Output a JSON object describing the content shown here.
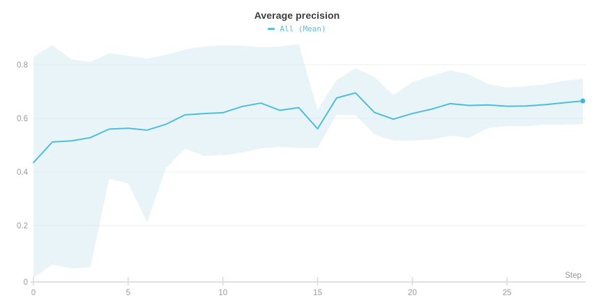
{
  "header": {
    "title": "Average precision"
  },
  "legend": {
    "items": [
      {
        "label": "All (Mean)",
        "color": "#57c0dd"
      }
    ]
  },
  "colors": {
    "line": "#4dbdda",
    "end_dot": "#3fb6d8",
    "band_fill": "#d8edf4",
    "grid_line": "#ededed",
    "axis_line": "#e0e0e0",
    "tick_mark": "#d9d9d9",
    "tick_label": "#9b9b9b",
    "title_text": "#3d3d3d"
  },
  "chart_data": {
    "type": "line",
    "title": "Average precision",
    "xlabel": "Step",
    "ylabel": "",
    "x": [
      0,
      1,
      2,
      3,
      4,
      5,
      6,
      7,
      8,
      9,
      10,
      11,
      12,
      13,
      14,
      15,
      16,
      17,
      18,
      19,
      20,
      21,
      22,
      23,
      24,
      25,
      26,
      27,
      28,
      29
    ],
    "series": [
      {
        "name": "All (Mean)",
        "values": [
          0.435,
          0.512,
          0.516,
          0.528,
          0.56,
          0.563,
          0.556,
          0.578,
          0.613,
          0.618,
          0.621,
          0.644,
          0.657,
          0.63,
          0.64,
          0.561,
          0.676,
          0.695,
          0.622,
          0.597,
          0.618,
          0.634,
          0.655,
          0.648,
          0.65,
          0.645,
          0.646,
          0.651,
          0.658,
          0.665
        ]
      }
    ],
    "bands": [
      {
        "series": "All (Mean)",
        "upper": [
          0.83,
          0.873,
          0.82,
          0.81,
          0.843,
          0.833,
          0.823,
          0.837,
          0.857,
          0.868,
          0.872,
          0.871,
          0.866,
          0.868,
          0.878,
          0.63,
          0.743,
          0.787,
          0.754,
          0.686,
          0.735,
          0.758,
          0.779,
          0.763,
          0.728,
          0.715,
          0.72,
          0.727,
          0.74,
          0.748
        ],
        "lower": [
          0.005,
          0.055,
          0.04,
          0.044,
          0.375,
          0.357,
          0.213,
          0.415,
          0.487,
          0.46,
          0.462,
          0.472,
          0.488,
          0.494,
          0.49,
          0.49,
          0.613,
          0.613,
          0.54,
          0.517,
          0.517,
          0.521,
          0.535,
          0.527,
          0.564,
          0.571,
          0.571,
          0.577,
          0.577,
          0.579
        ]
      }
    ],
    "xlim": [
      0,
      29
    ],
    "ylim": [
      0,
      0.88
    ],
    "x_ticks": [
      0,
      5,
      10,
      15,
      20,
      25
    ],
    "y_ticks": [
      0,
      0.2,
      0.4,
      0.6,
      0.8
    ],
    "grid": true,
    "legend_position": "top-center",
    "end_marker": true
  }
}
